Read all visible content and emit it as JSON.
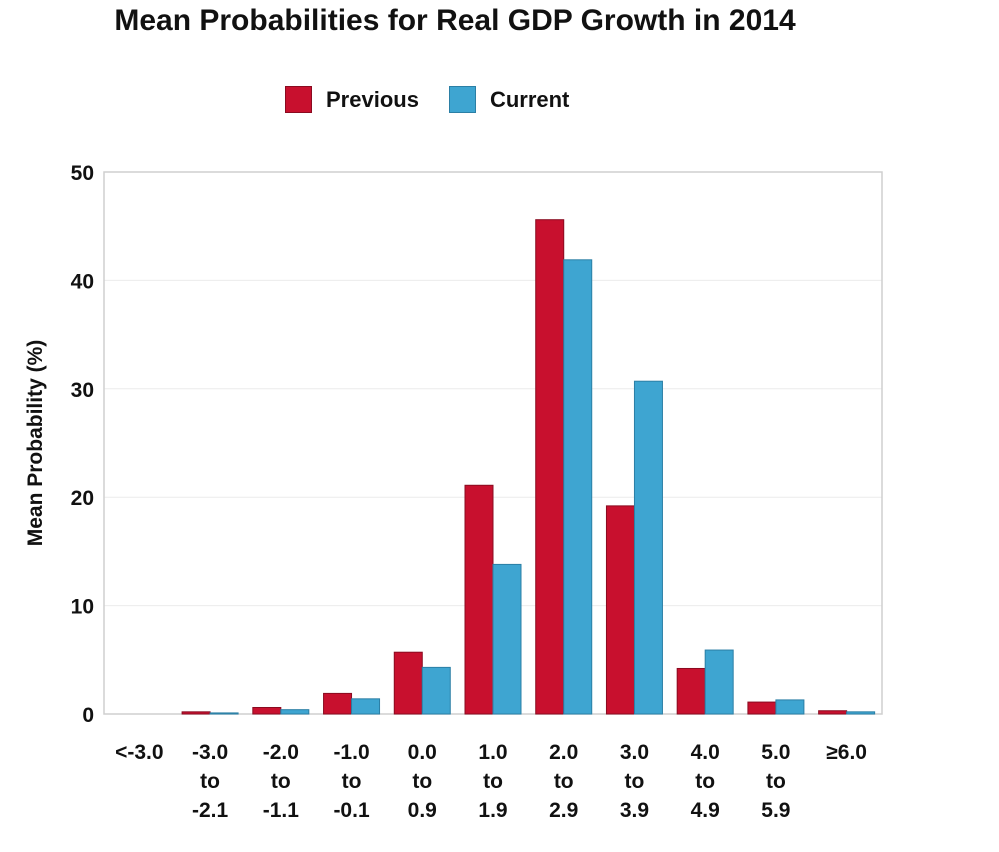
{
  "chart_data": {
    "type": "bar",
    "title": "Mean Probabilities for Real GDP Growth in 2014",
    "ylabel": "Mean Probability (%)",
    "xlabel": "",
    "ylim": [
      0,
      50
    ],
    "yticks": [
      0,
      10,
      20,
      30,
      40,
      50
    ],
    "grid": true,
    "legend_position": "top-center",
    "categories": [
      [
        "<-3.0"
      ],
      [
        "-3.0",
        "to",
        "-2.1"
      ],
      [
        "-2.0",
        "to",
        "-1.1"
      ],
      [
        "-1.0",
        "to",
        "-0.1"
      ],
      [
        "0.0",
        "to",
        "0.9"
      ],
      [
        "1.0",
        "to",
        "1.9"
      ],
      [
        "2.0",
        "to",
        "2.9"
      ],
      [
        "3.0",
        "to",
        "3.9"
      ],
      [
        "4.0",
        "to",
        "4.9"
      ],
      [
        "5.0",
        "to",
        "5.9"
      ],
      [
        "≥6.0"
      ]
    ],
    "series": [
      {
        "name": "Previous",
        "color": "#c8102e",
        "values": [
          0.0,
          0.2,
          0.6,
          1.9,
          5.7,
          21.1,
          45.6,
          19.2,
          4.2,
          1.1,
          0.3
        ]
      },
      {
        "name": "Current",
        "color": "#3ea5d1",
        "values": [
          0.0,
          0.1,
          0.4,
          1.4,
          4.3,
          13.8,
          41.9,
          30.7,
          5.9,
          1.3,
          0.2
        ]
      }
    ]
  }
}
